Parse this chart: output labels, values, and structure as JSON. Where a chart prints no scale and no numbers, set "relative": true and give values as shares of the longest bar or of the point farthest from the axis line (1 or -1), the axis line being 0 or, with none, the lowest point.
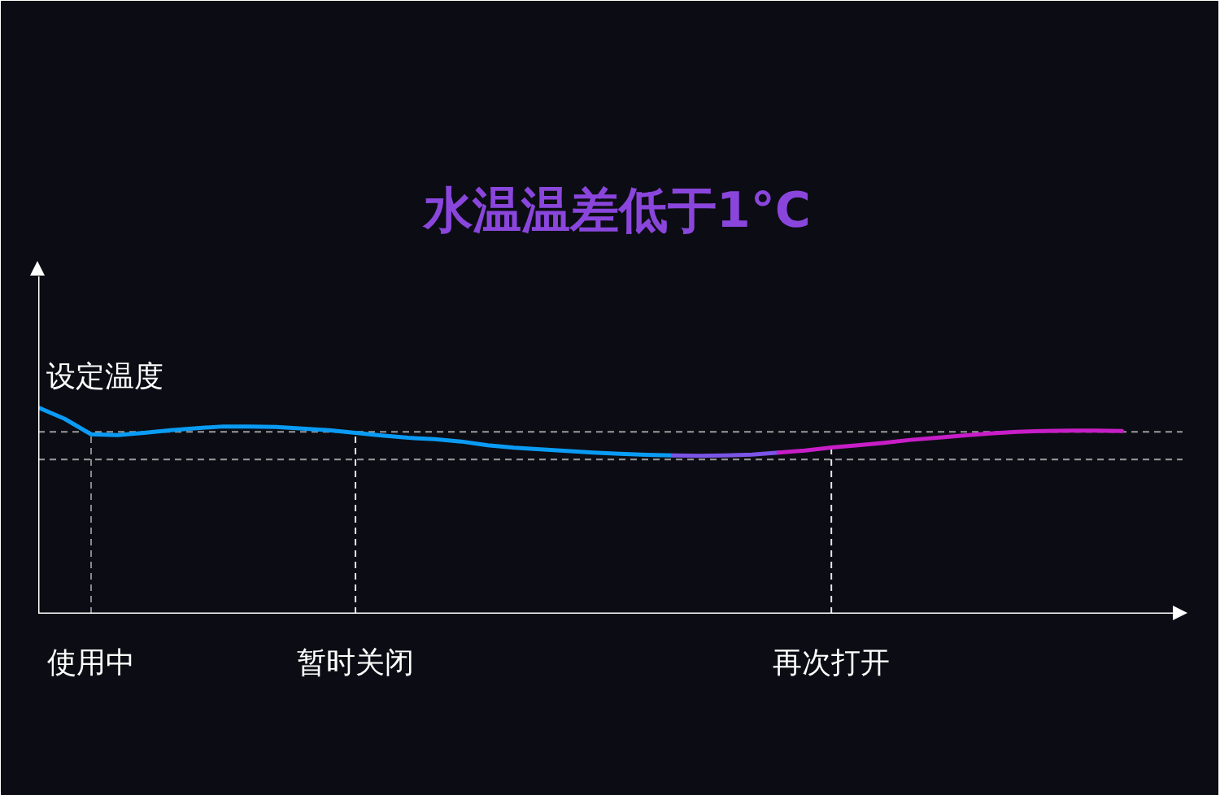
{
  "chart_data": {
    "type": "line",
    "title": "水温温差低于1°C",
    "relative": true,
    "categories": [
      null,
      null,
      "使用中",
      null,
      null,
      null,
      null,
      null,
      null,
      null,
      null,
      null,
      "暂时关闭",
      null,
      null,
      null,
      null,
      null,
      null,
      null,
      null,
      null,
      null,
      null,
      null,
      null,
      null,
      null,
      null,
      null,
      "再次打开",
      null,
      null,
      null,
      null,
      null,
      null,
      null,
      null,
      null,
      null,
      null
    ],
    "series": [
      {
        "color": "#0a9cf5",
        "values": [
          1.0,
          0.945,
          0.87,
          0.866,
          0.877,
          0.89,
          0.9,
          0.908,
          0.908,
          0.906,
          0.898,
          0.89,
          0.877,
          0.864,
          0.853,
          0.846,
          0.835,
          0.817,
          0.805,
          0.797,
          0.789,
          0.781,
          0.775,
          0.771,
          0.768,
          null,
          null,
          null,
          null,
          null,
          null,
          null,
          null,
          null,
          null,
          null,
          null,
          null,
          null,
          null,
          null,
          null
        ]
      },
      {
        "color": "#7b55e8",
        "values": [
          null,
          null,
          null,
          null,
          null,
          null,
          null,
          null,
          null,
          null,
          null,
          null,
          null,
          null,
          null,
          null,
          null,
          null,
          null,
          null,
          null,
          null,
          null,
          null,
          0.768,
          0.766,
          0.768,
          0.772,
          0.781,
          null,
          null,
          null,
          null,
          null,
          null,
          null,
          null,
          null,
          null,
          null,
          null,
          null
        ]
      },
      {
        "color": "#c81ec8",
        "values": [
          null,
          null,
          null,
          null,
          null,
          null,
          null,
          null,
          null,
          null,
          null,
          null,
          null,
          null,
          null,
          null,
          null,
          null,
          null,
          null,
          null,
          null,
          null,
          null,
          null,
          null,
          null,
          null,
          0.781,
          0.791,
          0.806,
          0.817,
          0.829,
          0.843,
          0.853,
          0.864,
          0.874,
          0.882,
          0.886,
          0.888,
          0.888,
          0.886
        ]
      }
    ],
    "ref_lines": [
      {
        "axis": "y",
        "value": 0.882,
        "label": "设定温度",
        "color": "#9a9a9a",
        "line_style": "dashed"
      },
      {
        "axis": "y",
        "value": 0.748,
        "color": "#9a9a9a",
        "line_style": "dashed"
      },
      {
        "axis": "x",
        "value": "使用中",
        "color": "#8a8a8a",
        "line_style": "dashed"
      },
      {
        "axis": "x",
        "value": "暂时关闭",
        "color": "#e6e6e6",
        "line_style": "dashed"
      },
      {
        "axis": "x",
        "value": "再次打开",
        "color": "#e6e6e6",
        "line_style": "dashed"
      }
    ]
  }
}
